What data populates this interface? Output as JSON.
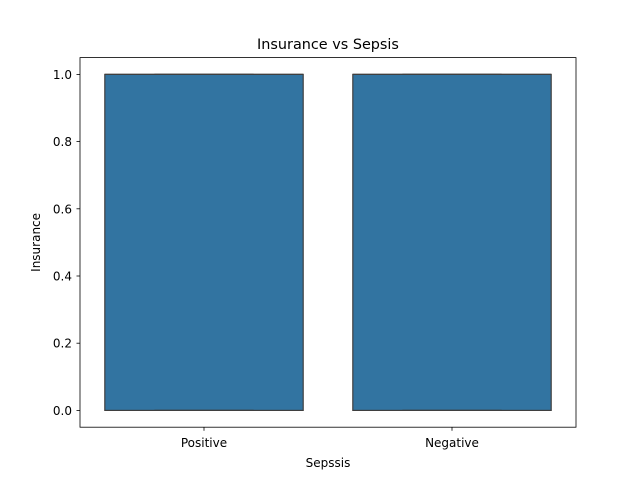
{
  "chart_data": {
    "type": "box",
    "title": "Insurance vs Sepsis",
    "xlabel": "Sepssis",
    "ylabel": "Insurance",
    "categories": [
      "Positive",
      "Negative"
    ],
    "boxes": [
      {
        "category": "Positive",
        "min": 0.0,
        "q1": 0.0,
        "median": 1.0,
        "q3": 1.0,
        "max": 1.0
      },
      {
        "category": "Negative",
        "min": 0.0,
        "q1": 0.0,
        "median": 1.0,
        "q3": 1.0,
        "max": 1.0
      }
    ],
    "ylim": [
      -0.05,
      1.05
    ],
    "yticks": [
      0.0,
      0.2,
      0.4,
      0.6,
      0.8,
      1.0
    ],
    "ytick_labels": [
      "0.0",
      "0.2",
      "0.4",
      "0.6",
      "0.8",
      "1.0"
    ],
    "box_color": "#3274a1",
    "edge_color": "#3f3f3f",
    "grid": false,
    "legend": "none"
  }
}
